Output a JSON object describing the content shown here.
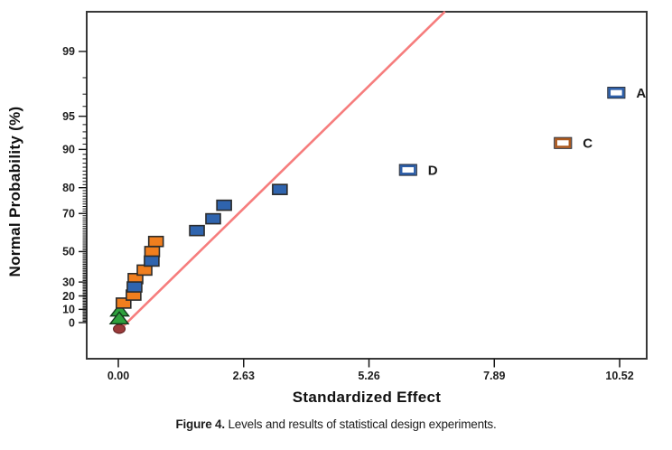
{
  "figure": {
    "caption_label": "Figure 4.",
    "caption_text": " Levels and results of statistical design experiments."
  },
  "chart_data": {
    "type": "scatter",
    "title": "",
    "xlabel": "Standardized Effect",
    "ylabel": "Normal Probability (%)",
    "y_scale": "half-normal-probability",
    "grid": false,
    "legend": false,
    "x_ticks": [
      {
        "value": 0,
        "label": "0.00"
      },
      {
        "value": 2.63,
        "label": "2.63"
      },
      {
        "value": 5.26,
        "label": "5.26"
      },
      {
        "value": 7.89,
        "label": "7.89"
      },
      {
        "value": 10.52,
        "label": "10.52"
      }
    ],
    "xlim": [
      -0.66,
      11.1
    ],
    "y_ticks_labeled": [
      0,
      10,
      20,
      30,
      50,
      70,
      80,
      90,
      95,
      99
    ],
    "y_minor_ticks_every_percent": 1,
    "colors": {
      "blue_fill": "#2f64ae",
      "blue_open_border": "#2e5fa8",
      "orange_fill": "#f07e1e",
      "orange_open_border": "#ad5a1f",
      "green_fill": "#2ea13d",
      "maroon_fill": "#9a3a3a",
      "fit_line": "#f67d7d",
      "frame": "#383838",
      "tick": "#161616"
    },
    "fit_line": {
      "x1": 0.06,
      "p1": 0.5,
      "x2": 6.84,
      "p2": 99.68
    },
    "series": [
      {
        "name": "maroon-dot",
        "marker": "filled-circle",
        "color": "#9a3a3a",
        "points": [
          {
            "x": 0.02,
            "p": 0,
            "dy": 7
          }
        ]
      },
      {
        "name": "green-triangles",
        "marker": "filled-triangle",
        "color": "#2ea13d",
        "points": [
          {
            "x": 0.03,
            "p": 8.8
          },
          {
            "x": 0.02,
            "p": 2.9
          }
        ]
      },
      {
        "name": "orange-squares",
        "marker": "filled-square",
        "color": "#f07e1e",
        "points": [
          {
            "x": 0.11,
            "p": 14.7
          },
          {
            "x": 0.32,
            "p": 20.6
          },
          {
            "x": 0.36,
            "p": 32.4
          },
          {
            "x": 0.55,
            "p": 38.2
          },
          {
            "x": 0.71,
            "p": 50.0
          },
          {
            "x": 0.79,
            "p": 55.9
          }
        ]
      },
      {
        "name": "blue-squares",
        "marker": "filled-square",
        "color": "#2f64ae",
        "points": [
          {
            "x": 0.34,
            "p": 26.5
          },
          {
            "x": 0.7,
            "p": 44.1
          },
          {
            "x": 1.65,
            "p": 61.8
          },
          {
            "x": 1.99,
            "p": 67.6
          },
          {
            "x": 2.22,
            "p": 73.5
          },
          {
            "x": 3.39,
            "p": 79.4
          }
        ]
      },
      {
        "name": "labeled-open-squares",
        "marker": "open-square",
        "points": [
          {
            "x": 6.08,
            "p": 85.3,
            "label": "D",
            "color": "#2e5fa8"
          },
          {
            "x": 9.33,
            "p": 91.2,
            "label": "C",
            "color": "#ad5a1f"
          },
          {
            "x": 10.45,
            "p": 97.1,
            "label": "A",
            "color": "#2e5fa8"
          }
        ]
      }
    ]
  }
}
